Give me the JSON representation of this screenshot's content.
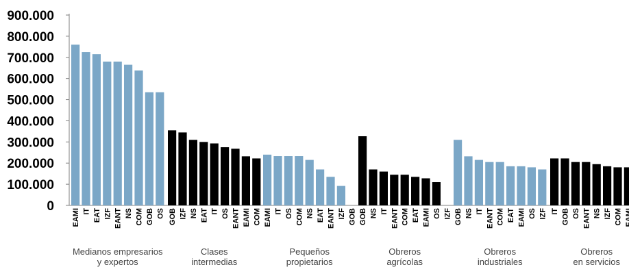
{
  "chart_data": {
    "type": "bar",
    "title": "",
    "xlabel": "",
    "ylabel": "",
    "ylim": [
      0,
      900000
    ],
    "y_ticks": [
      "0",
      "100.000",
      "200.000",
      "300.000",
      "400.000",
      "500.000",
      "600.000",
      "700.000",
      "800.000",
      "900.000"
    ],
    "colors": {
      "light": "#7ba7c7",
      "dark": "#000000"
    },
    "groups": [
      {
        "label": [
          "Medianos empresarios",
          "y expertos"
        ],
        "color": "light",
        "categories": [
          "EAMI",
          "IT",
          "EAT",
          "IZF",
          "EANT",
          "NS",
          "COM",
          "GOB",
          "OS"
        ],
        "values": [
          760000,
          725000,
          715000,
          680000,
          680000,
          665000,
          638000,
          535000,
          535000
        ]
      },
      {
        "label": [
          "Clases",
          "intermedias"
        ],
        "color": "dark",
        "categories": [
          "GOB",
          "IZF",
          "NS",
          "EAT",
          "IT",
          "OS",
          "EANT",
          "EAMI",
          "COM"
        ],
        "values": [
          355000,
          345000,
          310000,
          300000,
          293000,
          275000,
          268000,
          232000,
          222000
        ]
      },
      {
        "label": [
          "Pequeños",
          "propietarios"
        ],
        "color": "light",
        "categories": [
          "EAMI",
          "IT",
          "OS",
          "COM",
          "NS",
          "EAT",
          "EANT",
          "IZF",
          "GOB"
        ],
        "values": [
          240000,
          233000,
          233000,
          233000,
          215000,
          170000,
          135000,
          92000,
          0
        ]
      },
      {
        "label": [
          "Obreros",
          "agrícolas"
        ],
        "color": "dark",
        "categories": [
          "GOB",
          "NS",
          "IT",
          "EANT",
          "COM",
          "EAT",
          "EAMI",
          "OS",
          "IZF"
        ],
        "values": [
          327000,
          170000,
          160000,
          145000,
          145000,
          135000,
          128000,
          110000,
          0
        ]
      },
      {
        "label": [
          "Obreros",
          "industriales"
        ],
        "color": "light",
        "categories": [
          "GOB",
          "NS",
          "IT",
          "EANT",
          "COM",
          "EAT",
          "EAMI",
          "OS",
          "IZF"
        ],
        "values": [
          310000,
          232000,
          215000,
          205000,
          205000,
          185000,
          185000,
          180000,
          170000
        ]
      },
      {
        "label": [
          "Obreros",
          "en servicios"
        ],
        "color": "dark",
        "categories": [
          "IT",
          "GOB",
          "OS",
          "EANT",
          "NS",
          "IZF",
          "COM",
          "EAMI",
          "EAT"
        ],
        "values": [
          222000,
          222000,
          205000,
          205000,
          195000,
          185000,
          180000,
          180000,
          170000
        ]
      }
    ],
    "grid": false,
    "legend": "none"
  }
}
